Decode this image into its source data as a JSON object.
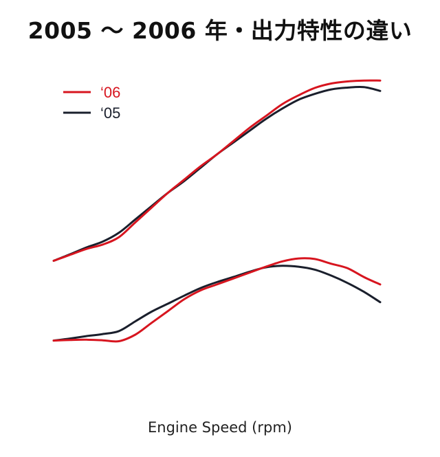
{
  "chart_data": {
    "type": "line",
    "title": "2005 〜 2006 年・出力特性の違い",
    "xlabel": "Engine Speed (rpm)",
    "ylabel": "",
    "xlim": [
      0,
      100
    ],
    "ylim": [
      0,
      100
    ],
    "grid": false,
    "legend_position": "top-left",
    "x": [
      0,
      5,
      10,
      15,
      20,
      25,
      30,
      35,
      40,
      45,
      50,
      55,
      60,
      65,
      70,
      75,
      80,
      85,
      90,
      95,
      100
    ],
    "series": [
      {
        "name": "‘06",
        "group": "upper",
        "color": "#d7151f",
        "values": [
          35.0,
          37.0,
          39.0,
          40.5,
          43.0,
          48.0,
          53.0,
          58.0,
          62.5,
          67.0,
          71.0,
          75.5,
          80.0,
          84.0,
          88.0,
          91.0,
          93.5,
          95.0,
          95.7,
          96.0,
          96.0
        ]
      },
      {
        "name": "‘05",
        "group": "upper",
        "color": "#1a1f2c",
        "values": [
          35.0,
          37.2,
          39.5,
          41.5,
          44.5,
          49.0,
          53.5,
          58.0,
          62.0,
          66.5,
          71.0,
          75.0,
          79.0,
          83.0,
          86.5,
          89.5,
          91.5,
          93.0,
          93.6,
          93.8,
          92.5
        ]
      },
      {
        "name": "‘06",
        "group": "lower",
        "color": "#d7151f",
        "values": [
          8.0,
          8.2,
          8.3,
          8.1,
          7.8,
          10.0,
          14.0,
          18.0,
          22.0,
          25.0,
          27.0,
          29.0,
          31.0,
          33.0,
          34.8,
          35.8,
          35.6,
          34.0,
          32.5,
          29.5,
          27.0
        ]
      },
      {
        "name": "‘05",
        "group": "lower",
        "color": "#1a1f2c",
        "values": [
          8.0,
          8.7,
          9.5,
          10.2,
          11.2,
          14.5,
          17.8,
          20.5,
          23.2,
          25.8,
          27.8,
          29.5,
          31.3,
          32.8,
          33.3,
          33.0,
          32.0,
          30.0,
          27.5,
          24.5,
          21.0
        ]
      }
    ]
  }
}
